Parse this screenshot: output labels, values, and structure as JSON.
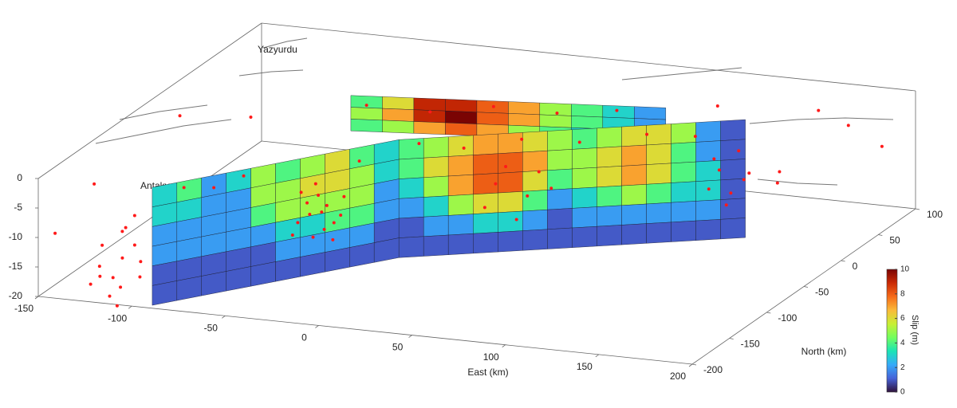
{
  "chart_data": {
    "type": "fault-slip-3d",
    "xlabel": "East (km)",
    "ylabel": "North (km)",
    "colorbar_label": "Slip (m)",
    "xlim": [
      -150,
      200
    ],
    "ylim": [
      -200,
      100
    ],
    "zlim": [
      -20,
      0
    ],
    "xticks": [
      -150,
      -100,
      -50,
      0,
      50,
      100,
      150,
      200
    ],
    "yticks": [
      -200,
      -150,
      -100,
      -50,
      0,
      50,
      100
    ],
    "zticks": [
      -20,
      -15,
      -10,
      -5,
      0
    ],
    "clim": [
      0,
      10
    ],
    "cticks": [
      0,
      2,
      4,
      6,
      8,
      10
    ],
    "colormap": [
      "#30123b",
      "#4662d7",
      "#36aaf9",
      "#1ae4b6",
      "#72fe5e",
      "#c8ef34",
      "#faba39",
      "#f66b19",
      "#ca2a04",
      "#7a0403"
    ],
    "annotations": [
      "Yazyurdu",
      "Antakya"
    ],
    "faults": [
      {
        "trace": [
          [
            -60,
            -6
          ],
          [
            95,
            28
          ]
        ],
        "depth": -6,
        "slip": [
          [
            4,
            6,
            9,
            9,
            8,
            7,
            5,
            4,
            3,
            2
          ],
          [
            5,
            7,
            9,
            10,
            8,
            7,
            5,
            4,
            3,
            2
          ],
          [
            4,
            5,
            7,
            8,
            7,
            5,
            4,
            3,
            2,
            2
          ]
        ]
      },
      {
        "trace": [
          [
            -91,
            -195
          ],
          [
            -8,
            -72
          ]
        ],
        "depth": -20,
        "slip": [
          [
            3,
            4,
            2,
            3,
            5,
            4,
            5,
            6,
            4,
            3
          ],
          [
            3,
            3,
            2,
            2,
            5,
            5,
            6,
            6,
            5,
            3
          ],
          [
            2,
            2,
            2,
            2,
            4,
            5,
            5,
            5,
            5,
            2
          ],
          [
            2,
            2,
            2,
            2,
            2,
            3,
            3,
            4,
            4,
            2
          ],
          [
            1,
            1,
            1,
            1,
            1,
            2,
            2,
            2,
            2,
            1
          ],
          [
            1,
            1,
            1,
            1,
            1,
            1,
            1,
            1,
            1,
            1
          ]
        ]
      },
      {
        "trace": [
          [
            -8,
            -72
          ],
          [
            140,
            22
          ]
        ],
        "depth": -20,
        "slip": [
          [
            4,
            5,
            6,
            7,
            7,
            6,
            5,
            4,
            5,
            6,
            6,
            5,
            2,
            1
          ],
          [
            4,
            6,
            7,
            8,
            8,
            7,
            5,
            5,
            6,
            7,
            6,
            4,
            2,
            1
          ],
          [
            3,
            5,
            7,
            8,
            8,
            6,
            4,
            5,
            6,
            7,
            6,
            4,
            3,
            1
          ],
          [
            2,
            3,
            5,
            6,
            6,
            4,
            2,
            3,
            4,
            5,
            4,
            3,
            3,
            1
          ],
          [
            1,
            2,
            2,
            3,
            3,
            2,
            1,
            2,
            2,
            2,
            2,
            2,
            2,
            1
          ],
          [
            1,
            1,
            1,
            1,
            1,
            1,
            1,
            1,
            1,
            1,
            1,
            1,
            1,
            1
          ]
        ]
      }
    ],
    "earthquakes": {
      "color": "#ff1a1a",
      "x": [
        -118,
        -112,
        -105,
        -110,
        -100,
        -115,
        -108,
        -122,
        -98,
        -113,
        -104,
        -119,
        -107,
        -96,
        -111,
        -40,
        -35,
        -30,
        -42,
        -38,
        -33,
        -28,
        -45,
        -36,
        -31,
        -39,
        -27,
        -43,
        -34,
        -37,
        -80,
        -70,
        -60,
        -20,
        0,
        20,
        45,
        70,
        100,
        120,
        -50,
        -20,
        10,
        40,
        70,
        130,
        135,
        128,
        140,
        133,
        138,
        126,
        142,
        35,
        50,
        55,
        30,
        60,
        45,
        40,
        -140,
        180,
        190,
        160,
        -130,
        -100,
        150,
        -145,
        175,
        110
      ],
      "y": [
        -198,
        -195,
        -200,
        -190,
        -196,
        -205,
        -188,
        -200,
        -193,
        -197,
        -186,
        -192,
        -202,
        -199,
        -185,
        -115,
        -108,
        -104,
        -118,
        -112,
        -106,
        -100,
        -122,
        -110,
        -103,
        -114,
        -98,
        -120,
        -107,
        -111,
        -180,
        -165,
        -150,
        -95,
        -65,
        -55,
        -40,
        -25,
        -10,
        5,
        -10,
        0,
        10,
        20,
        25,
        12,
        15,
        10,
        20,
        14,
        18,
        8,
        22,
        -50,
        -45,
        -42,
        -52,
        -38,
        -47,
        -49,
        -150,
        60,
        80,
        70,
        -60,
        -40,
        40,
        -190,
        -20,
        60
      ],
      "z": [
        -14,
        -16,
        -12,
        -18,
        -10,
        -15,
        -8,
        -17,
        -13,
        -19,
        -6,
        -11,
        -20,
        -15,
        -9,
        -8,
        -10,
        -12,
        -6,
        -14,
        -9,
        -11,
        -13,
        -7,
        -15,
        -10,
        -8,
        -11,
        -13,
        -5,
        -1,
        -2,
        -1,
        -2,
        -1,
        -2,
        -1,
        -2,
        -1,
        -2,
        -1,
        -2,
        -1,
        -2,
        -1,
        -8,
        -12,
        -6,
        -10,
        -14,
        -5,
        -11,
        -9,
        -8,
        -10,
        -6,
        -12,
        -9,
        -14,
        -5,
        -5,
        -3,
        -8,
        -2,
        -1,
        -2,
        -12,
        -10,
        -4,
        -2
      ]
    }
  }
}
